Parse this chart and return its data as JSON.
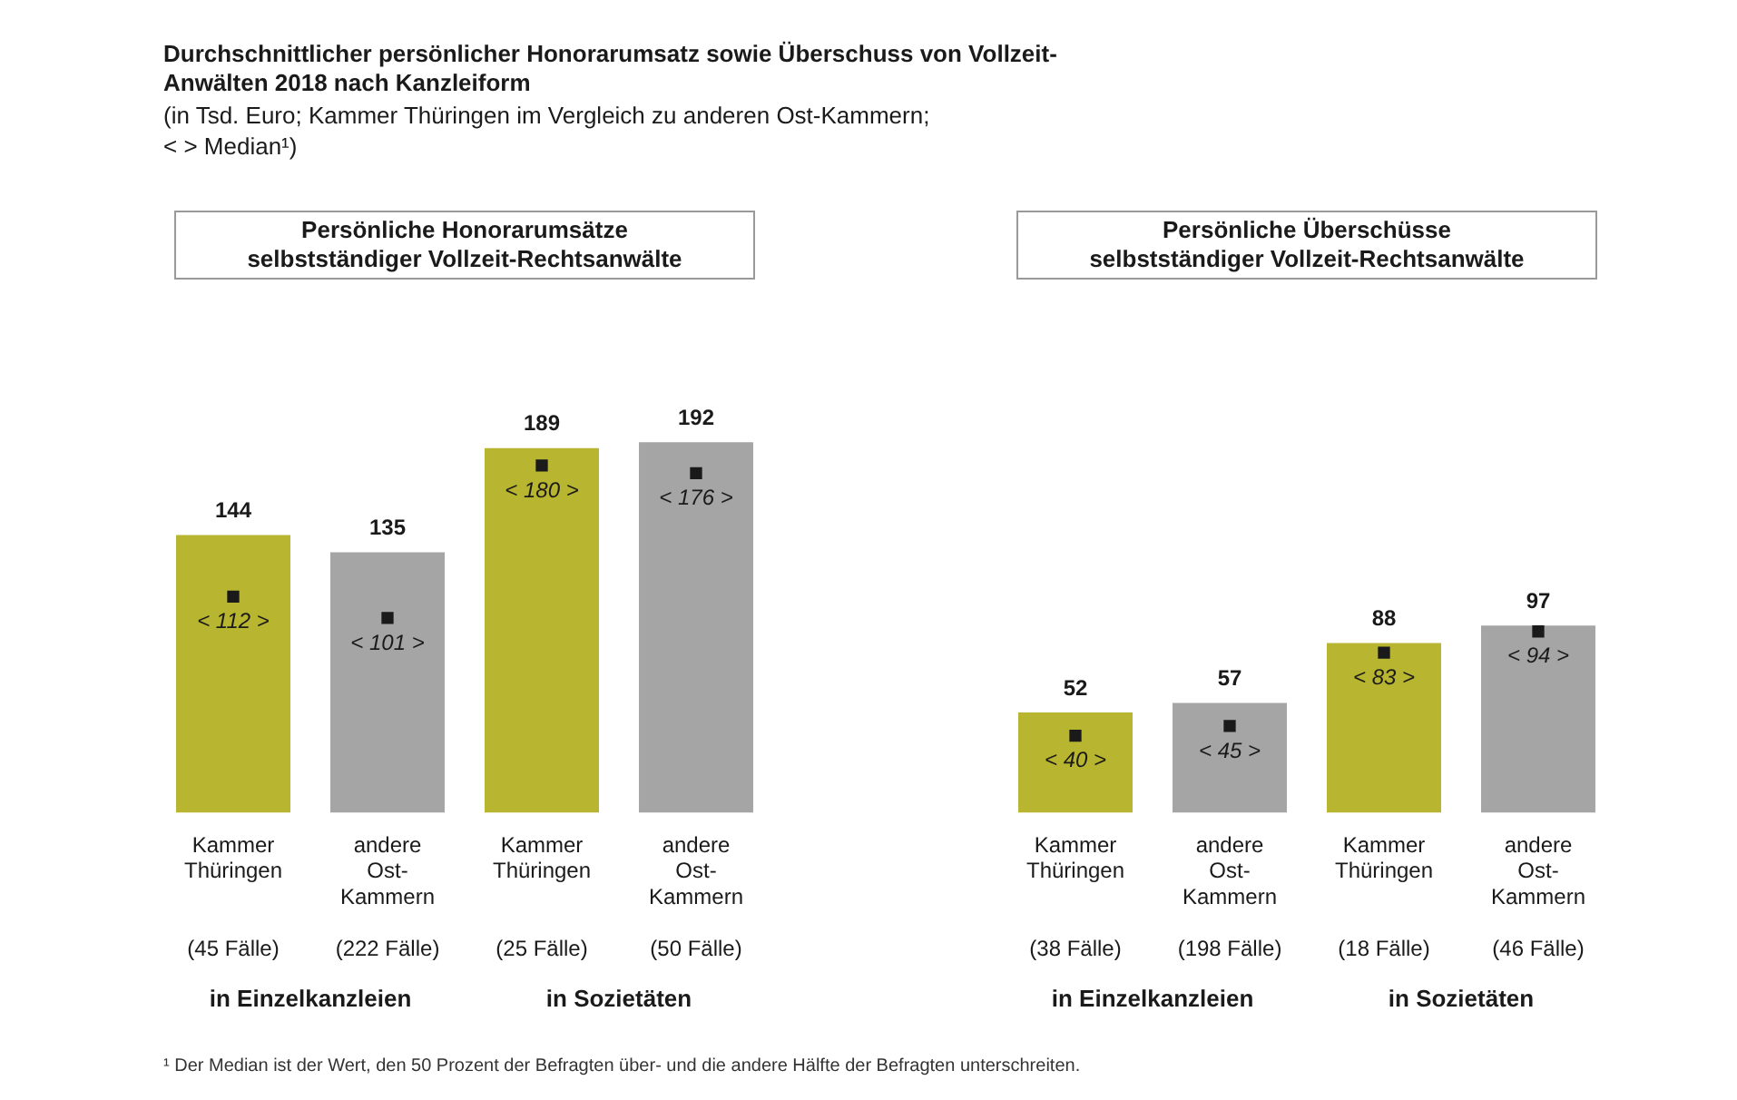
{
  "chart_data": [
    {
      "type": "bar",
      "title": "Durchschnittlicher persönlicher Honorarumsatz sowie Überschuss von Vollzeit-Anwälten 2018 nach Kanzleiform",
      "subtitle": "(in Tsd. Euro; Kammer Thüringen im Vergleich zu anderen Ost-Kammern;\n<   > Median¹)",
      "categories": [
        "Kammer Thüringen",
        "andere Ost-Kammern",
        "Kammer Thüringen",
        "andere Ost-Kammern"
      ],
      "series": [
        {
          "type": "bar",
          "colors": [
            "#b8b530",
            "#a5a5a5",
            "#b8b530",
            "#a5a5a5"
          ],
          "values": [
            144,
            135,
            189,
            192
          ],
          "value_labels": [
            "144",
            "135",
            "189",
            "192"
          ]
        },
        {
          "type": "scatter",
          "color": "#1a1a1a",
          "values": [
            112,
            101,
            180,
            176
          ],
          "value_labels": [
            "< 112 >",
            "< 101 >",
            "< 180 >",
            "< 176 >"
          ]
        }
      ],
      "annotations": [
        "Persönliche Honorarumsätze\nselbstständiger Vollzeit-Rechtsanwälte",
        "(45 Fälle)",
        "(222 Fälle)",
        "(25 Fälle)",
        "(50 Fälle)",
        "in Einzelkanzleien",
        "in Sozietäten"
      ],
      "tick_labels": "x",
      "grid": false,
      "legend": false
    },
    {
      "type": "bar",
      "categories": [
        "Kammer Thüringen",
        "andere Ost-Kammern",
        "Kammer Thüringen",
        "andere Ost-Kammern"
      ],
      "series": [
        {
          "type": "bar",
          "colors": [
            "#b8b530",
            "#a5a5a5",
            "#b8b530",
            "#a5a5a5"
          ],
          "values": [
            52,
            57,
            88,
            97
          ],
          "value_labels": [
            "52",
            "57",
            "88",
            "97"
          ]
        },
        {
          "type": "scatter",
          "color": "#1a1a1a",
          "values": [
            40,
            45,
            83,
            94
          ],
          "value_labels": [
            "< 40 >",
            "< 45 >",
            "< 83 >",
            "< 94 >"
          ]
        }
      ],
      "annotations": [
        "Persönliche Überschüsse\nselbstständiger Vollzeit-Rechtsanwälte",
        "(38 Fälle)",
        "(198 Fälle)",
        "(18 Fälle)",
        "(46 Fälle)",
        "in Einzelkanzleien",
        "in Sozietäten",
        "¹ Der Median ist der Wert, den 50 Prozent der Befragten über- und die andere Hälfte der Befragten unterschreiten."
      ],
      "tick_labels": "x",
      "grid": false,
      "legend": false
    }
  ]
}
